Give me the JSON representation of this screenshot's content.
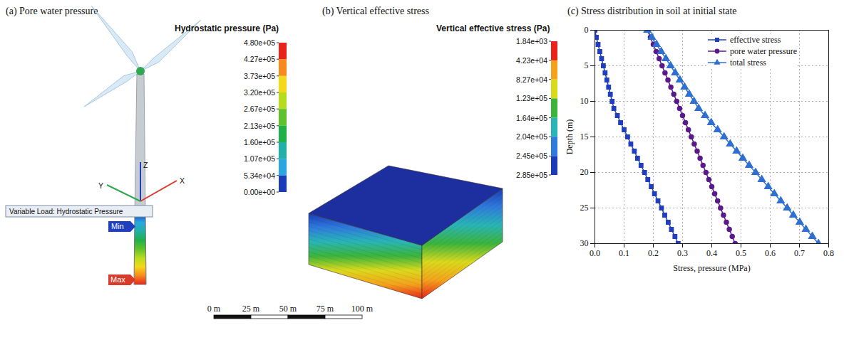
{
  "panels": [
    {
      "title": "(a) Pore water pressure",
      "colorbar": {
        "title": "Hydrostatic pressure (Pa)",
        "ticks": [
          {
            "value": 480000,
            "label": "4.80e+05"
          },
          {
            "value": 427000,
            "label": "4.27e+05"
          },
          {
            "value": 373000,
            "label": "3.73e+05"
          },
          {
            "value": 320000,
            "label": "3.20e+05"
          },
          {
            "value": 267000,
            "label": "2.67e+05"
          },
          {
            "value": 213000,
            "label": "2.13e+05"
          },
          {
            "value": 160000,
            "label": "1.60e+05"
          },
          {
            "value": 107000,
            "label": "1.07e+05"
          },
          {
            "value": 53400,
            "label": "5.34e+04"
          },
          {
            "value": 0,
            "label": "0.00e+00"
          }
        ],
        "colors": [
          "#e8231b",
          "#f78a1d",
          "#f2d91a",
          "#b6dc1f",
          "#5fc22c",
          "#1fb04a",
          "#1fb1a8",
          "#2aa6e0",
          "#1a3cb8"
        ]
      },
      "annotations": {
        "load": "Variable Load: Hydrostatic Pressure",
        "min": "Min",
        "max": "Max",
        "axes": [
          "X",
          "Y",
          "Z"
        ]
      }
    },
    {
      "title": "(b) Vertical effective stress",
      "colorbar": {
        "title": "Vertical effective stress (Pa)",
        "ticks": [
          {
            "value": 1840,
            "label": "1.84e+03"
          },
          {
            "value": 42300,
            "label": "4.23e+04"
          },
          {
            "value": 82700,
            "label": "8.27e+04"
          },
          {
            "value": 123000,
            "label": "1.23e+05"
          },
          {
            "value": 164000,
            "label": "1.64e+05"
          },
          {
            "value": 204000,
            "label": "2.04e+05"
          },
          {
            "value": 245000,
            "label": "2.45e+05"
          },
          {
            "value": 285000,
            "label": "2.85e+05"
          }
        ],
        "colors": [
          "#e8231b",
          "#f4a21c",
          "#dada1d",
          "#3cb43c",
          "#2ab5b5",
          "#2f7bdc",
          "#1a3cb8"
        ]
      }
    }
  ],
  "scale_bar": {
    "ticks": [
      {
        "value": 0,
        "label": "0 m"
      },
      {
        "value": 25,
        "label": "25 m"
      },
      {
        "value": 50,
        "label": "50 m"
      },
      {
        "value": 75,
        "label": "75 m"
      },
      {
        "value": 100,
        "label": "100 m"
      }
    ]
  },
  "chart_data": {
    "type": "line",
    "title": "(c) Stress distribution in soil at initial state",
    "x_label": "Stress, pressure (MPa)",
    "y_label": "Depth (m)",
    "y": [
      0,
      1,
      2,
      3,
      4,
      5,
      6,
      7,
      8,
      9,
      10,
      11,
      12,
      13,
      14,
      15,
      16,
      17,
      18,
      19,
      20,
      21,
      22,
      23,
      24,
      25,
      26,
      27,
      28,
      29,
      30
    ],
    "series": [
      {
        "name": "effective stress",
        "color": "#1f3fbf",
        "marker": "square",
        "line_style": "solid",
        "values": [
          0.0,
          0.005,
          0.011,
          0.017,
          0.023,
          0.029,
          0.035,
          0.041,
          0.047,
          0.053,
          0.059,
          0.065,
          0.077,
          0.088,
          0.1,
          0.112,
          0.123,
          0.135,
          0.146,
          0.158,
          0.17,
          0.181,
          0.193,
          0.204,
          0.216,
          0.228,
          0.239,
          0.251,
          0.262,
          0.274,
          0.285
        ]
      },
      {
        "name": "pore water pressure",
        "color": "#5a1a8c",
        "marker": "circle",
        "line_style": "solid",
        "values": [
          0.18,
          0.19,
          0.2,
          0.21,
          0.22,
          0.23,
          0.24,
          0.25,
          0.26,
          0.27,
          0.28,
          0.29,
          0.3,
          0.31,
          0.32,
          0.33,
          0.34,
          0.35,
          0.36,
          0.37,
          0.38,
          0.39,
          0.4,
          0.41,
          0.42,
          0.43,
          0.44,
          0.45,
          0.46,
          0.47,
          0.48
        ]
      },
      {
        "name": "total stress",
        "color": "#2f6fd0",
        "marker": "triangle",
        "line_style": "solid",
        "values": [
          0.18,
          0.195,
          0.211,
          0.227,
          0.243,
          0.259,
          0.275,
          0.291,
          0.307,
          0.323,
          0.339,
          0.355,
          0.377,
          0.398,
          0.42,
          0.442,
          0.463,
          0.485,
          0.506,
          0.528,
          0.55,
          0.571,
          0.593,
          0.614,
          0.636,
          0.658,
          0.679,
          0.701,
          0.722,
          0.744,
          0.765
        ]
      }
    ],
    "xlim": [
      0,
      0.8
    ],
    "xticks": [
      {
        "value": 0,
        "label": "0.0"
      },
      0.1,
      0.2,
      0.3,
      0.4,
      0.5,
      0.6,
      0.7,
      0.8
    ],
    "ylim": [
      30,
      0
    ],
    "yticks": [
      0,
      5,
      10,
      15,
      20,
      25,
      30
    ],
    "grid": true,
    "legend": "top-right"
  }
}
